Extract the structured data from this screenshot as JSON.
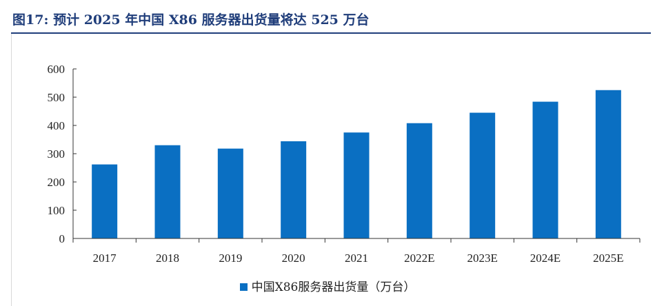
{
  "figure": {
    "label": "图17:",
    "title": "预计 2025 年中国 X86 服务器出货量将达 525 万台"
  },
  "colors": {
    "bar": "#0a6fc2",
    "title": "#1f3d7a",
    "axis": "#333333"
  },
  "chart_data": {
    "type": "bar",
    "title": "预计 2025 年中国 X86 服务器出货量将达 525 万台",
    "categories": [
      "2017",
      "2018",
      "2019",
      "2020",
      "2021",
      "2022E",
      "2023E",
      "2024E",
      "2025E"
    ],
    "series": [
      {
        "name": "中国X86服务器出货量（万台）",
        "values": [
          262,
          330,
          318,
          344,
          375,
          408,
          445,
          484,
          525
        ]
      }
    ],
    "yticks": [
      0,
      100,
      200,
      300,
      400,
      500,
      600
    ],
    "ylim": [
      0,
      600
    ],
    "xlabel": "",
    "ylabel": "",
    "grid": false,
    "legend_position": "bottom"
  }
}
